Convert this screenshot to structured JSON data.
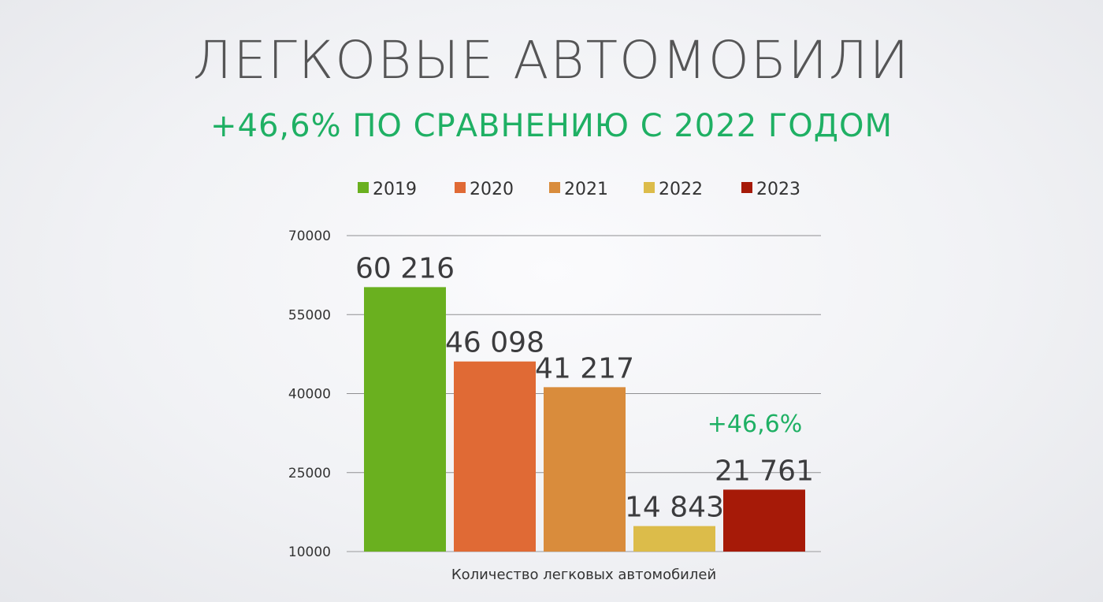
{
  "slide": {
    "title": "ЛЕГКОВЫЕ АВТОМОБИЛИ",
    "subtitle": "+46,6% ПО СРАВНЕНИЮ С 2022 ГОДОМ"
  },
  "chart_data": {
    "type": "bar",
    "categories": [
      "Количество легковых автомобилей"
    ],
    "series": [
      {
        "name": "2019",
        "values": [
          60216
        ],
        "label": "60 216",
        "color": "#6ab01f"
      },
      {
        "name": "2020",
        "values": [
          46098
        ],
        "label": "46 098",
        "color": "#e06a35"
      },
      {
        "name": "2021",
        "values": [
          41217
        ],
        "label": "41 217",
        "color": "#d98c3c"
      },
      {
        "name": "2022",
        "values": [
          14843
        ],
        "label": "14 843",
        "color": "#dcbc4a"
      },
      {
        "name": "2023",
        "values": [
          21761
        ],
        "label": "21 761",
        "color": "#a61a08"
      }
    ],
    "xlabel": "Количество легковых автомобилей",
    "ylabel": "",
    "ylim": [
      10000,
      70000
    ],
    "yticks": [
      10000,
      25000,
      40000,
      55000,
      70000
    ],
    "ytick_labels": [
      "10000",
      "25000",
      "40000",
      "55000",
      "70000"
    ],
    "grid": true,
    "legend_position": "top",
    "annotation": {
      "text": "+46,6%",
      "series": "2023",
      "color": "#1fb064"
    }
  }
}
